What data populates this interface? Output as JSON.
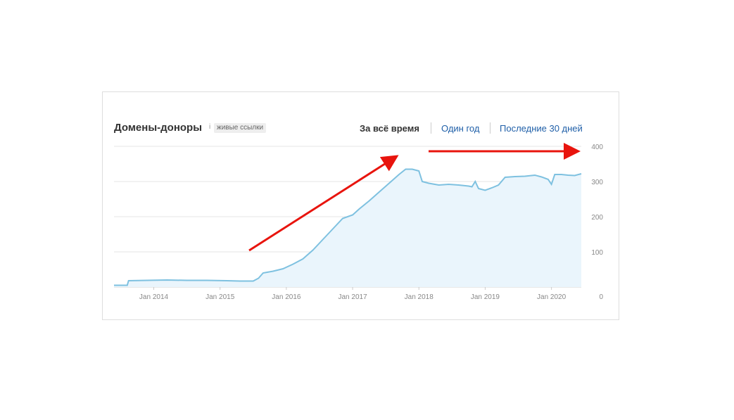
{
  "header": {
    "title": "Домены-доноры",
    "info_icon": "i",
    "badge": "живые ссылки",
    "ranges": {
      "all_time": "За всё время",
      "one_year": "Один год",
      "last_30_days": "Последние 30 дней"
    }
  },
  "colors": {
    "line": "#7ec1e0",
    "fill": "#eaf5fc",
    "arrow": "#e8140d",
    "grid": "#e6e6e6",
    "link": "#1f5fa8"
  },
  "chart_data": {
    "type": "area",
    "title": "Домены-доноры",
    "xlabel": "",
    "ylabel": "",
    "x_ticks": [
      "Jan 2014",
      "Jan 2015",
      "Jan 2016",
      "Jan 2017",
      "Jan 2018",
      "Jan 2019",
      "Jan 2020"
    ],
    "y_ticks": [
      "0",
      "100",
      "200",
      "300",
      "400"
    ],
    "ylim": [
      0,
      400
    ],
    "xlim": [
      2013.4,
      2020.45
    ],
    "grid": true,
    "series": [
      {
        "values": [
          [
            2013.4,
            5
          ],
          [
            2013.6,
            5
          ],
          [
            2013.62,
            18
          ],
          [
            2013.9,
            19
          ],
          [
            2014.2,
            20
          ],
          [
            2014.5,
            19
          ],
          [
            2014.8,
            19
          ],
          [
            2015.1,
            18
          ],
          [
            2015.3,
            17
          ],
          [
            2015.5,
            17
          ],
          [
            2015.58,
            25
          ],
          [
            2015.65,
            40
          ],
          [
            2015.8,
            45
          ],
          [
            2015.95,
            52
          ],
          [
            2016.1,
            65
          ],
          [
            2016.25,
            80
          ],
          [
            2016.4,
            105
          ],
          [
            2016.55,
            135
          ],
          [
            2016.7,
            165
          ],
          [
            2016.85,
            195
          ],
          [
            2017.0,
            205
          ],
          [
            2017.1,
            222
          ],
          [
            2017.25,
            245
          ],
          [
            2017.4,
            270
          ],
          [
            2017.55,
            295
          ],
          [
            2017.7,
            320
          ],
          [
            2017.8,
            335
          ],
          [
            2017.9,
            335
          ],
          [
            2018.0,
            330
          ],
          [
            2018.05,
            300
          ],
          [
            2018.15,
            295
          ],
          [
            2018.3,
            290
          ],
          [
            2018.45,
            292
          ],
          [
            2018.6,
            290
          ],
          [
            2018.75,
            287
          ],
          [
            2018.8,
            285
          ],
          [
            2018.85,
            300
          ],
          [
            2018.9,
            280
          ],
          [
            2019.0,
            275
          ],
          [
            2019.1,
            282
          ],
          [
            2019.2,
            290
          ],
          [
            2019.3,
            312
          ],
          [
            2019.45,
            314
          ],
          [
            2019.6,
            315
          ],
          [
            2019.75,
            318
          ],
          [
            2019.85,
            313
          ],
          [
            2019.95,
            306
          ],
          [
            2020.0,
            292
          ],
          [
            2020.05,
            320
          ],
          [
            2020.15,
            320
          ],
          [
            2020.25,
            318
          ],
          [
            2020.35,
            317
          ],
          [
            2020.45,
            322
          ]
        ]
      }
    ],
    "annotations": [
      "red-arrow-growth",
      "red-arrow-plateau"
    ]
  }
}
